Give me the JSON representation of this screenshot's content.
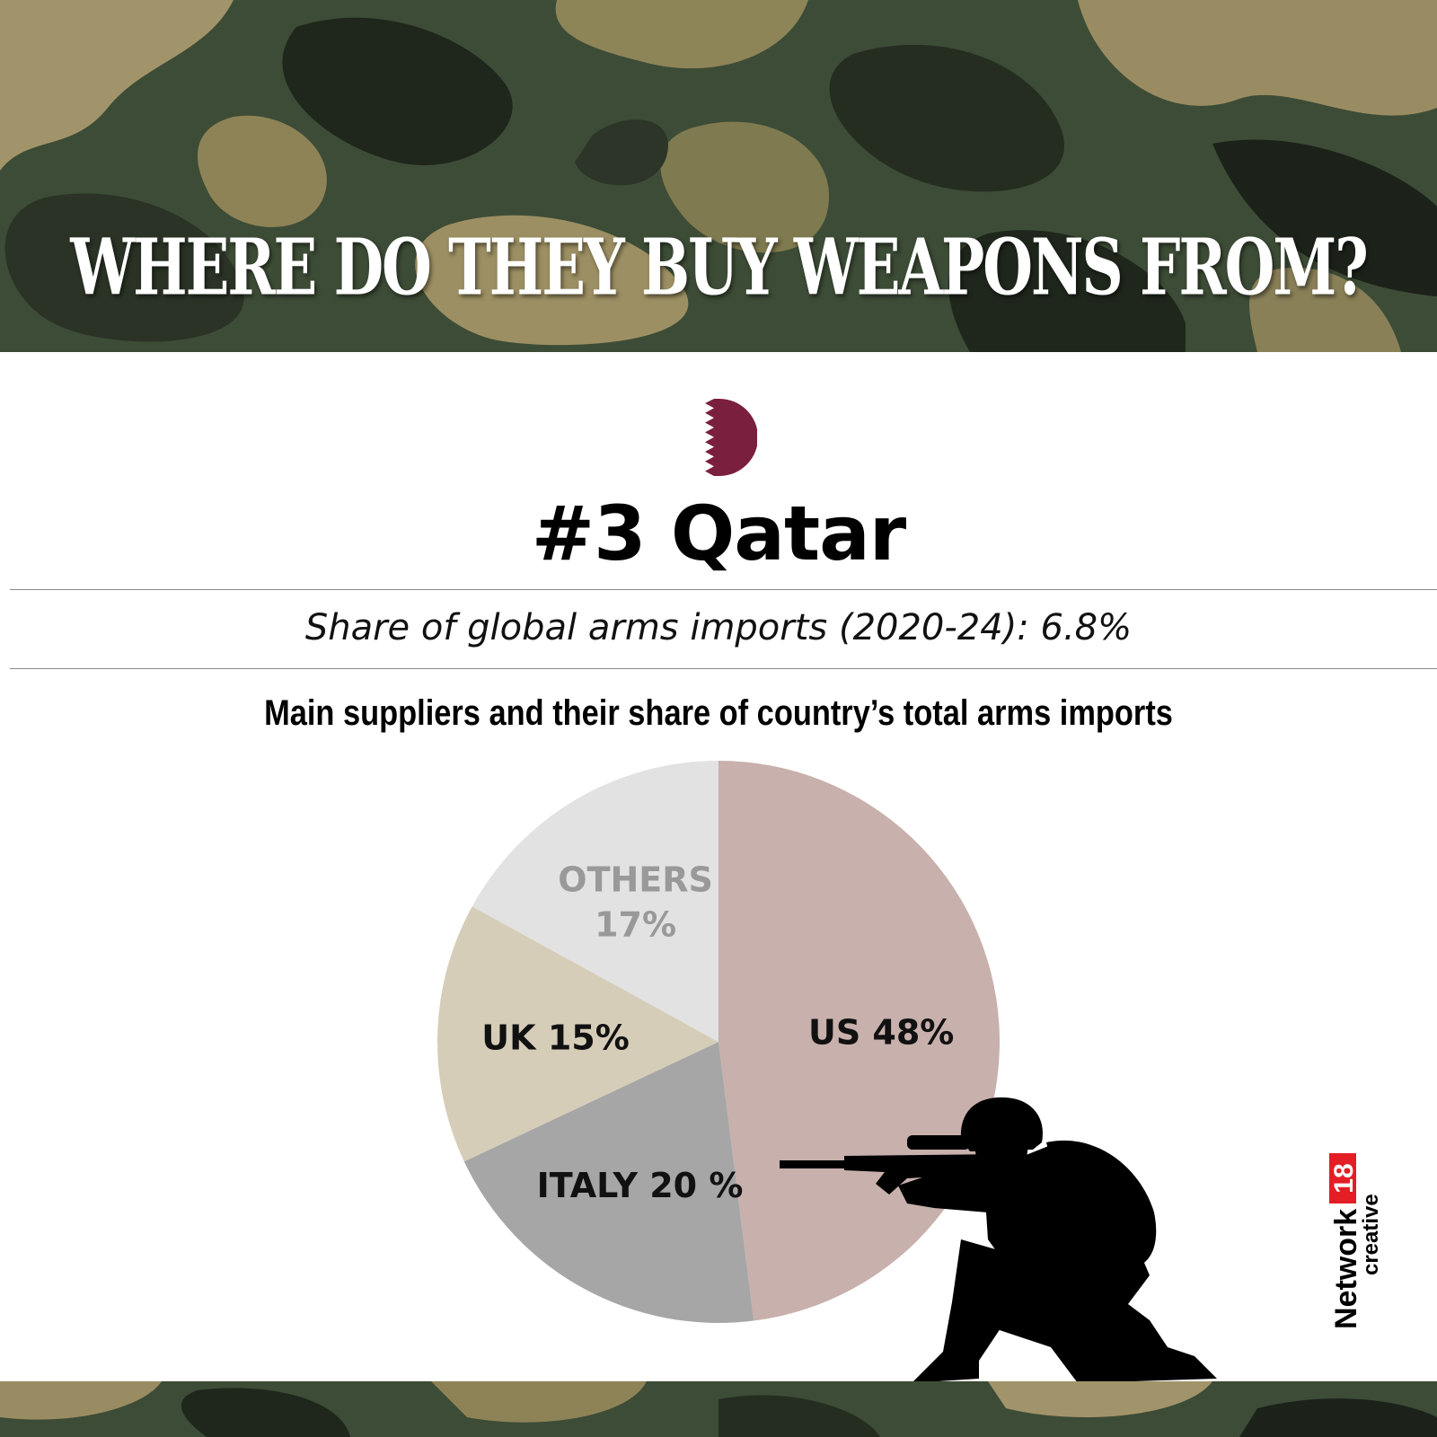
{
  "header": {
    "title": "WHERE DO THEY BUY WEAPONS FROM?"
  },
  "country": {
    "rank_name": "#3 Qatar",
    "flag_icon": "qatar-flag-icon",
    "flag_color": "#7a1f3d"
  },
  "share_text": "Share of global arms imports (2020-24): 6.8%",
  "chart_subtitle": "Main suppliers and their share of country’s total arms imports",
  "chart_data": {
    "type": "pie",
    "title": "Main suppliers and their share of country’s total arms imports",
    "slices": [
      {
        "name": "US",
        "label": "US 48%",
        "value": 48,
        "color": "#c8b0ac",
        "text_color": "#111111"
      },
      {
        "name": "ITALY",
        "label": "ITALY 20 %",
        "value": 20,
        "color": "#a6a6a6",
        "text_color": "#111111"
      },
      {
        "name": "UK",
        "label": "UK 15%",
        "value": 15,
        "color": "#d6cdb9",
        "text_color": "#111111"
      },
      {
        "name": "OTHERS",
        "label_line1": "OTHERS",
        "label_line2": "17%",
        "value": 17,
        "color": "#e2e2e2",
        "text_color": "#999999"
      }
    ]
  },
  "branding": {
    "network": "Network",
    "number": "18",
    "creative": "creative",
    "accent_color": "#e31e24"
  },
  "decor": {
    "silhouette_icon": "kneeling-soldier-silhouette-icon",
    "background": "camouflage-pattern"
  }
}
